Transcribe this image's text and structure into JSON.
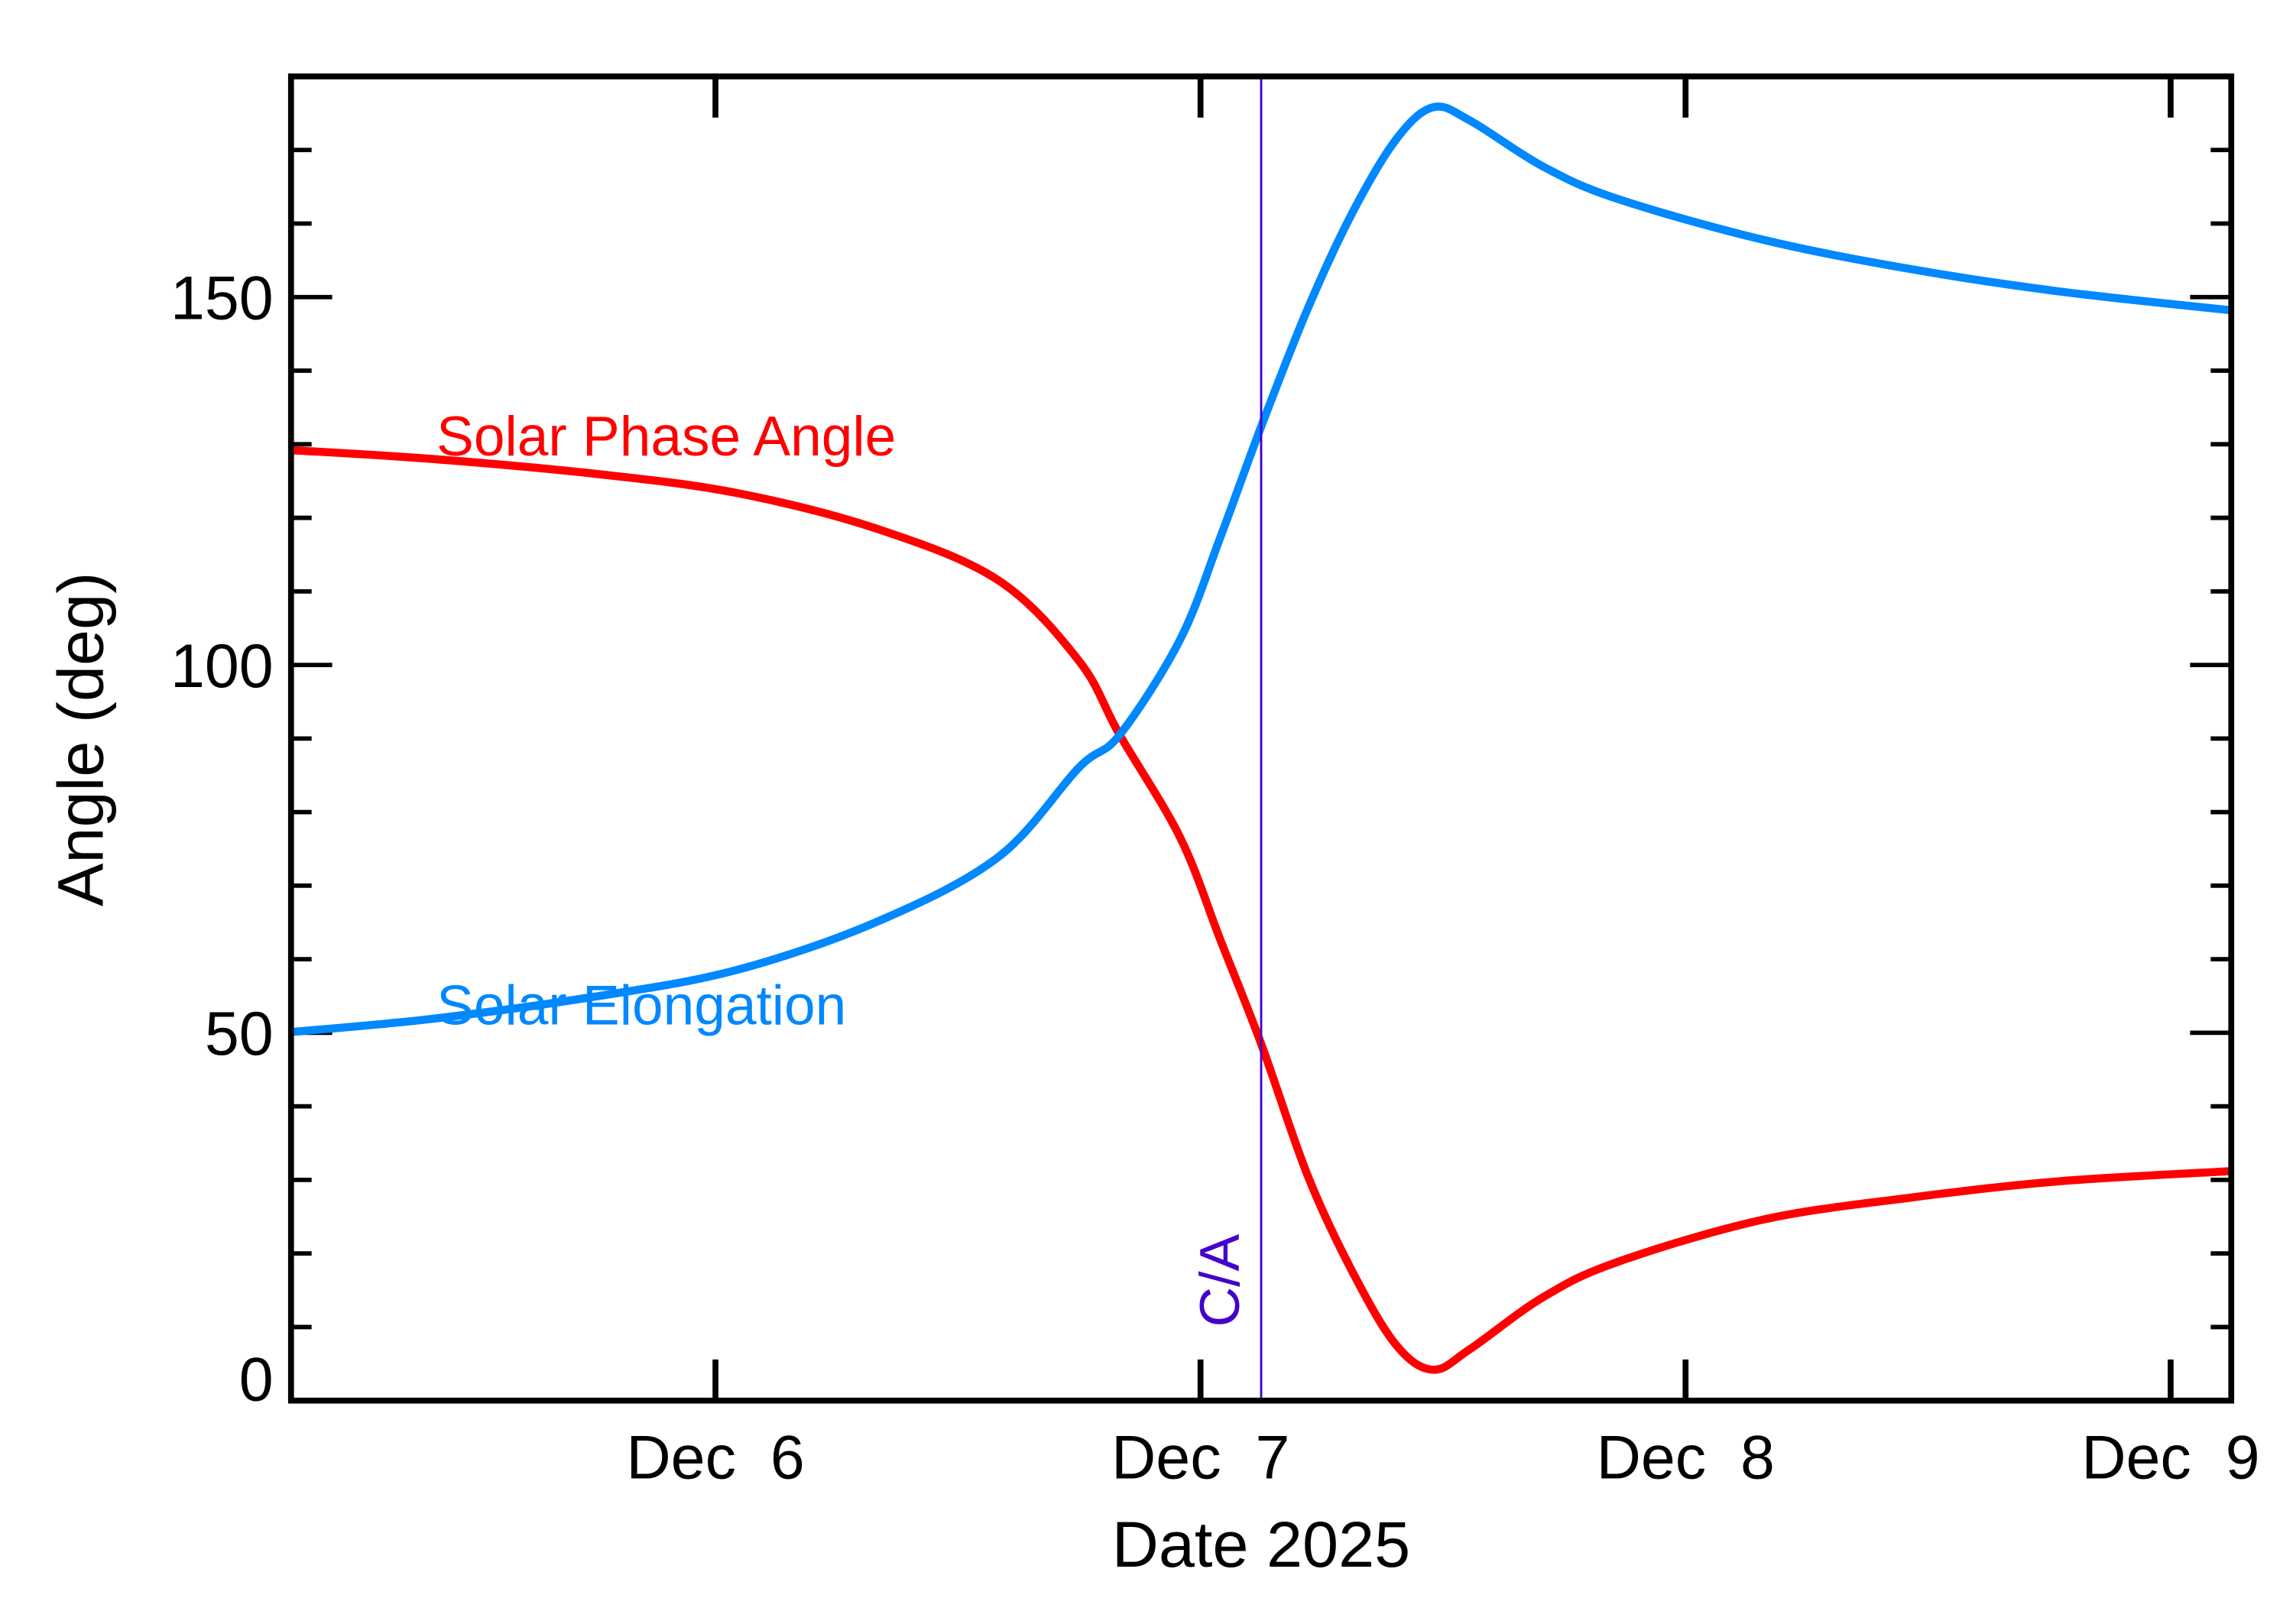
{
  "chart_data": {
    "type": "line",
    "title": "",
    "xlabel": "Date 2025",
    "ylabel": "Angle (deg)",
    "xlim": [
      "2025-12-05T03:00",
      "2025-12-09T03:00"
    ],
    "ylim": [
      0,
      180
    ],
    "grid": false,
    "x_ticks": [
      {
        "date": "2025-12-06T00:00",
        "label": "Dec  6"
      },
      {
        "date": "2025-12-07T00:00",
        "label": "Dec  7"
      },
      {
        "date": "2025-12-08T00:00",
        "label": "Dec  8"
      },
      {
        "date": "2025-12-09T00:00",
        "label": "Dec  9"
      }
    ],
    "y_ticks": [
      {
        "value": 0,
        "label": "0"
      },
      {
        "value": 50,
        "label": "50"
      },
      {
        "value": 100,
        "label": "100"
      },
      {
        "value": 150,
        "label": "150"
      }
    ],
    "y_minor_step": 10,
    "closest_approach": {
      "date": "2025-12-07T03:00",
      "label": "C/A",
      "color": "#4400cc"
    },
    "x": [
      "2025-12-05T03:00",
      "2025-12-05T10:00",
      "2025-12-05T18:00",
      "2025-12-06T01:00",
      "2025-12-06T08:00",
      "2025-12-06T14:00",
      "2025-12-06T18:00",
      "2025-12-06T20:00",
      "2025-12-06T23:00",
      "2025-12-07T01:00",
      "2025-12-07T03:00",
      "2025-12-07T05:18",
      "2025-12-07T07:30",
      "2025-12-07T09:40",
      "2025-12-07T11:30",
      "2025-12-07T13:20",
      "2025-12-07T16:55",
      "2025-12-07T20:35",
      "2025-12-08T03:50",
      "2025-12-08T11:10",
      "2025-12-08T18:25",
      "2025-12-09T03:00"
    ],
    "series": [
      {
        "name": "Solar Phase Angle",
        "color": "#ff0000",
        "values": [
          129.2,
          128.0,
          126.0,
          123.4,
          118.5,
          111.5,
          100.5,
          90.5,
          76.5,
          62.5,
          48.5,
          30.6,
          17.6,
          7.6,
          4.2,
          7.0,
          14.0,
          18.8,
          24.6,
          27.6,
          29.8,
          31.2
        ]
      },
      {
        "name": "Solar Elongation",
        "color": "#0088ff",
        "values": [
          50.1,
          51.9,
          54.9,
          58.5,
          65.1,
          73.9,
          86.1,
          90.5,
          103.5,
          117.5,
          132.4,
          148.4,
          161.4,
          171.4,
          175.8,
          174.0,
          167.8,
          163.4,
          157.8,
          153.8,
          150.8,
          148.2
        ]
      }
    ]
  }
}
